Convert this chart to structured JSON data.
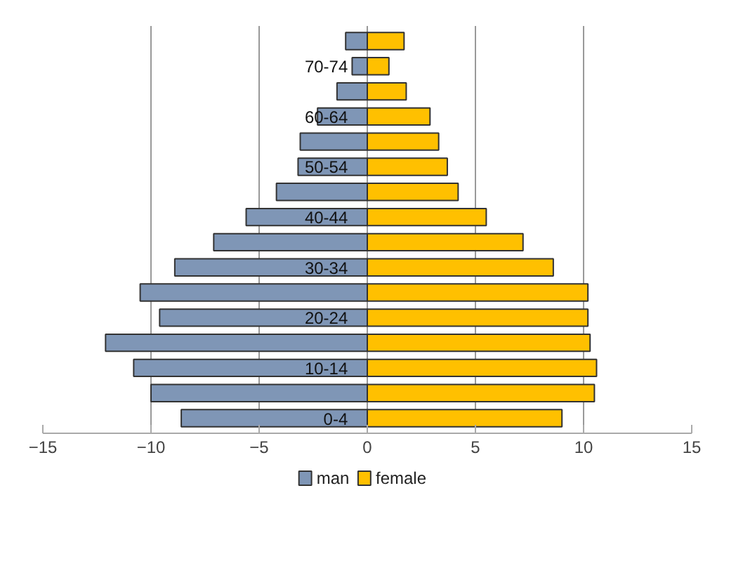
{
  "chart_data": {
    "type": "bar",
    "orientation": "horizontal",
    "categories": [
      null,
      "70-74",
      null,
      "60-64",
      null,
      "50-54",
      null,
      "40-44",
      null,
      "30-34",
      null,
      "20-24",
      null,
      "10-14",
      null,
      "0-4"
    ],
    "series": [
      {
        "name": "man",
        "color": "#7f96b6",
        "values": [
          -1.0,
          -0.7,
          -1.4,
          -2.3,
          -3.1,
          -3.2,
          -4.2,
          -5.6,
          -7.1,
          -8.9,
          -10.5,
          -9.6,
          -12.1,
          -10.8,
          -10.0,
          -8.6
        ]
      },
      {
        "name": "female",
        "color": "#ffc000",
        "values": [
          1.7,
          1.0,
          1.8,
          2.9,
          3.3,
          3.7,
          4.2,
          5.5,
          7.2,
          8.6,
          10.2,
          10.2,
          10.3,
          10.6,
          10.5,
          9.0
        ]
      }
    ],
    "xlim": [
      -15,
      15
    ],
    "xticks": [
      -15,
      -10,
      -5,
      0,
      5,
      10,
      15
    ],
    "stacked": true,
    "grid": "x",
    "legend": "bottom"
  }
}
